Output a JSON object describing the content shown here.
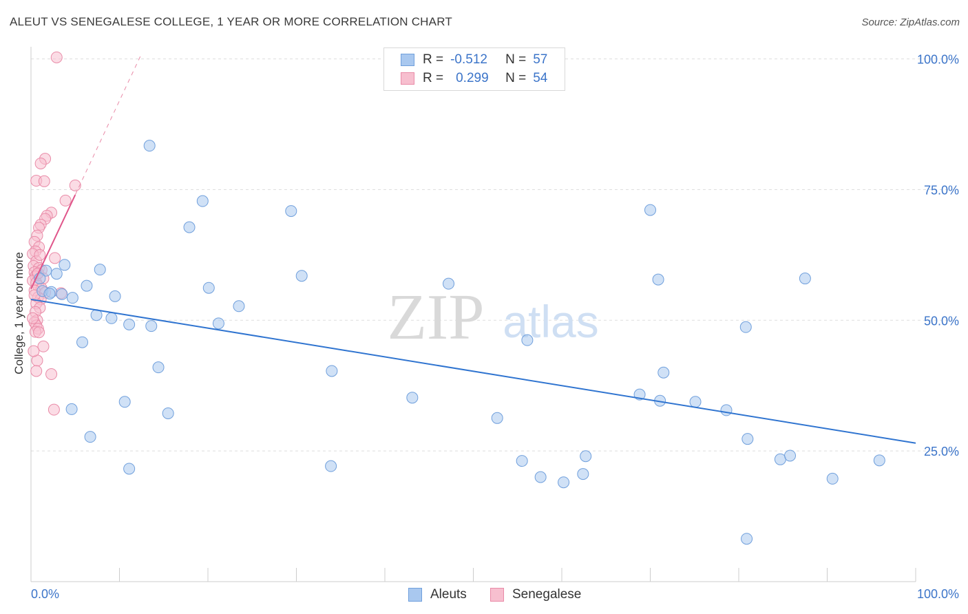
{
  "title": "ALEUT VS SENEGALESE COLLEGE, 1 YEAR OR MORE CORRELATION CHART",
  "source": "Source: ZipAtlas.com",
  "watermark": {
    "zip": "ZIP",
    "atlas": "atlas"
  },
  "legend": {
    "row1": {
      "r_label": "R =",
      "r_value": "-0.512",
      "n_label": "N =",
      "n_value": "57"
    },
    "row2": {
      "r_label": "R =",
      "r_value": "0.299",
      "n_label": "N =",
      "n_value": "54"
    }
  },
  "bottom_legend": {
    "series1": "Aleuts",
    "series2": "Senegalese"
  },
  "colors": {
    "aleut_fill": "#a9c8ef",
    "aleut_stroke": "#6f9fdc",
    "aleut_line": "#2f74d0",
    "seneg_fill": "#f7bfcf",
    "seneg_stroke": "#e98aa7",
    "seneg_line": "#e0558a",
    "tick_label": "#3b74c9",
    "grid": "#dddddd"
  },
  "chart_data": {
    "type": "scatter",
    "title": "ALEUT VS SENEGALESE COLLEGE, 1 YEAR OR MORE CORRELATION CHART",
    "xlabel": "",
    "ylabel": "College, 1 year or more",
    "xlim": [
      0,
      100
    ],
    "ylim": [
      0,
      102
    ],
    "x_tick_labels": [
      "0.0%",
      "100.0%"
    ],
    "y_ticks": [
      25,
      50,
      75,
      100
    ],
    "y_tick_labels": [
      "25.0%",
      "50.0%",
      "75.0%",
      "100.0%"
    ],
    "series": [
      {
        "name": "Aleuts",
        "r": -0.512,
        "n": 57,
        "trend": {
          "x": [
            0,
            100
          ],
          "y": [
            54.0,
            26.5
          ],
          "style": "solid"
        },
        "points": [
          [
            13.4,
            83.4
          ],
          [
            19.4,
            72.8
          ],
          [
            17.9,
            67.8
          ],
          [
            29.4,
            70.9
          ],
          [
            70.0,
            71.1
          ],
          [
            3.8,
            60.6
          ],
          [
            7.8,
            59.7
          ],
          [
            1.7,
            59.5
          ],
          [
            2.9,
            58.9
          ],
          [
            30.6,
            58.5
          ],
          [
            47.2,
            57.0
          ],
          [
            70.9,
            57.8
          ],
          [
            87.5,
            58.0
          ],
          [
            6.3,
            56.6
          ],
          [
            20.1,
            56.2
          ],
          [
            1.3,
            55.6
          ],
          [
            2.3,
            55.4
          ],
          [
            3.5,
            55.0
          ],
          [
            4.7,
            54.3
          ],
          [
            9.5,
            54.6
          ],
          [
            23.5,
            52.7
          ],
          [
            7.4,
            51.0
          ],
          [
            9.1,
            50.4
          ],
          [
            11.1,
            49.2
          ],
          [
            13.6,
            48.9
          ],
          [
            21.2,
            49.4
          ],
          [
            80.8,
            48.7
          ],
          [
            5.8,
            45.8
          ],
          [
            56.1,
            46.2
          ],
          [
            14.4,
            41.0
          ],
          [
            34.0,
            40.3
          ],
          [
            71.5,
            40.0
          ],
          [
            43.1,
            35.2
          ],
          [
            68.8,
            35.8
          ],
          [
            71.1,
            34.6
          ],
          [
            75.1,
            34.4
          ],
          [
            78.6,
            32.8
          ],
          [
            10.6,
            34.4
          ],
          [
            4.6,
            33.0
          ],
          [
            15.5,
            32.2
          ],
          [
            52.7,
            31.3
          ],
          [
            6.7,
            27.7
          ],
          [
            81.0,
            27.3
          ],
          [
            62.7,
            24.0
          ],
          [
            84.7,
            23.4
          ],
          [
            85.8,
            24.1
          ],
          [
            95.9,
            23.2
          ],
          [
            55.5,
            23.1
          ],
          [
            11.1,
            21.6
          ],
          [
            33.9,
            22.1
          ],
          [
            57.6,
            20.0
          ],
          [
            62.4,
            20.6
          ],
          [
            90.6,
            19.7
          ],
          [
            60.2,
            19.0
          ],
          [
            80.9,
            8.2
          ],
          [
            2.1,
            55.1
          ],
          [
            1.0,
            58.0
          ]
        ]
      },
      {
        "name": "Senegalese",
        "r": 0.299,
        "n": 54,
        "trend": {
          "x": [
            0,
            5
          ],
          "y": [
            56.0,
            74.0
          ],
          "style": "solid",
          "extension": {
            "x": [
              5,
              12.5
            ],
            "y": [
              74.0,
              101.0
            ],
            "style": "dashed"
          }
        },
        "points": [
          [
            2.9,
            100.3
          ],
          [
            1.6,
            80.9
          ],
          [
            1.1,
            80.0
          ],
          [
            0.6,
            76.7
          ],
          [
            1.5,
            76.6
          ],
          [
            5.0,
            75.8
          ],
          [
            3.9,
            72.9
          ],
          [
            2.3,
            70.6
          ],
          [
            1.8,
            70.0
          ],
          [
            1.6,
            69.4
          ],
          [
            1.1,
            68.3
          ],
          [
            0.9,
            67.7
          ],
          [
            0.7,
            66.2
          ],
          [
            0.4,
            65.0
          ],
          [
            0.9,
            64.0
          ],
          [
            0.5,
            63.2
          ],
          [
            0.2,
            62.7
          ],
          [
            2.7,
            61.9
          ],
          [
            0.6,
            61.3
          ],
          [
            0.3,
            60.4
          ],
          [
            0.9,
            60.0
          ],
          [
            1.2,
            59.6
          ],
          [
            0.4,
            59.2
          ],
          [
            0.7,
            58.8
          ],
          [
            0.5,
            58.4
          ],
          [
            1.4,
            58.0
          ],
          [
            0.2,
            57.6
          ],
          [
            0.6,
            57.2
          ],
          [
            0.8,
            56.6
          ],
          [
            1.2,
            56.1
          ],
          [
            0.4,
            55.7
          ],
          [
            1.6,
            55.3
          ],
          [
            3.4,
            55.2
          ],
          [
            0.8,
            54.4
          ],
          [
            1.1,
            54.0
          ],
          [
            0.6,
            53.2
          ],
          [
            1.0,
            52.4
          ],
          [
            0.5,
            51.6
          ],
          [
            0.7,
            50.0
          ],
          [
            0.4,
            49.6
          ],
          [
            0.6,
            49.0
          ],
          [
            0.8,
            48.4
          ],
          [
            0.5,
            47.8
          ],
          [
            0.9,
            47.7
          ],
          [
            1.4,
            45.0
          ],
          [
            0.7,
            42.3
          ],
          [
            0.6,
            40.3
          ],
          [
            2.3,
            39.7
          ],
          [
            2.6,
            32.9
          ],
          [
            0.2,
            50.4
          ],
          [
            0.3,
            44.1
          ],
          [
            1.0,
            62.5
          ],
          [
            0.4,
            54.8
          ],
          [
            0.8,
            59.0
          ]
        ]
      }
    ]
  }
}
